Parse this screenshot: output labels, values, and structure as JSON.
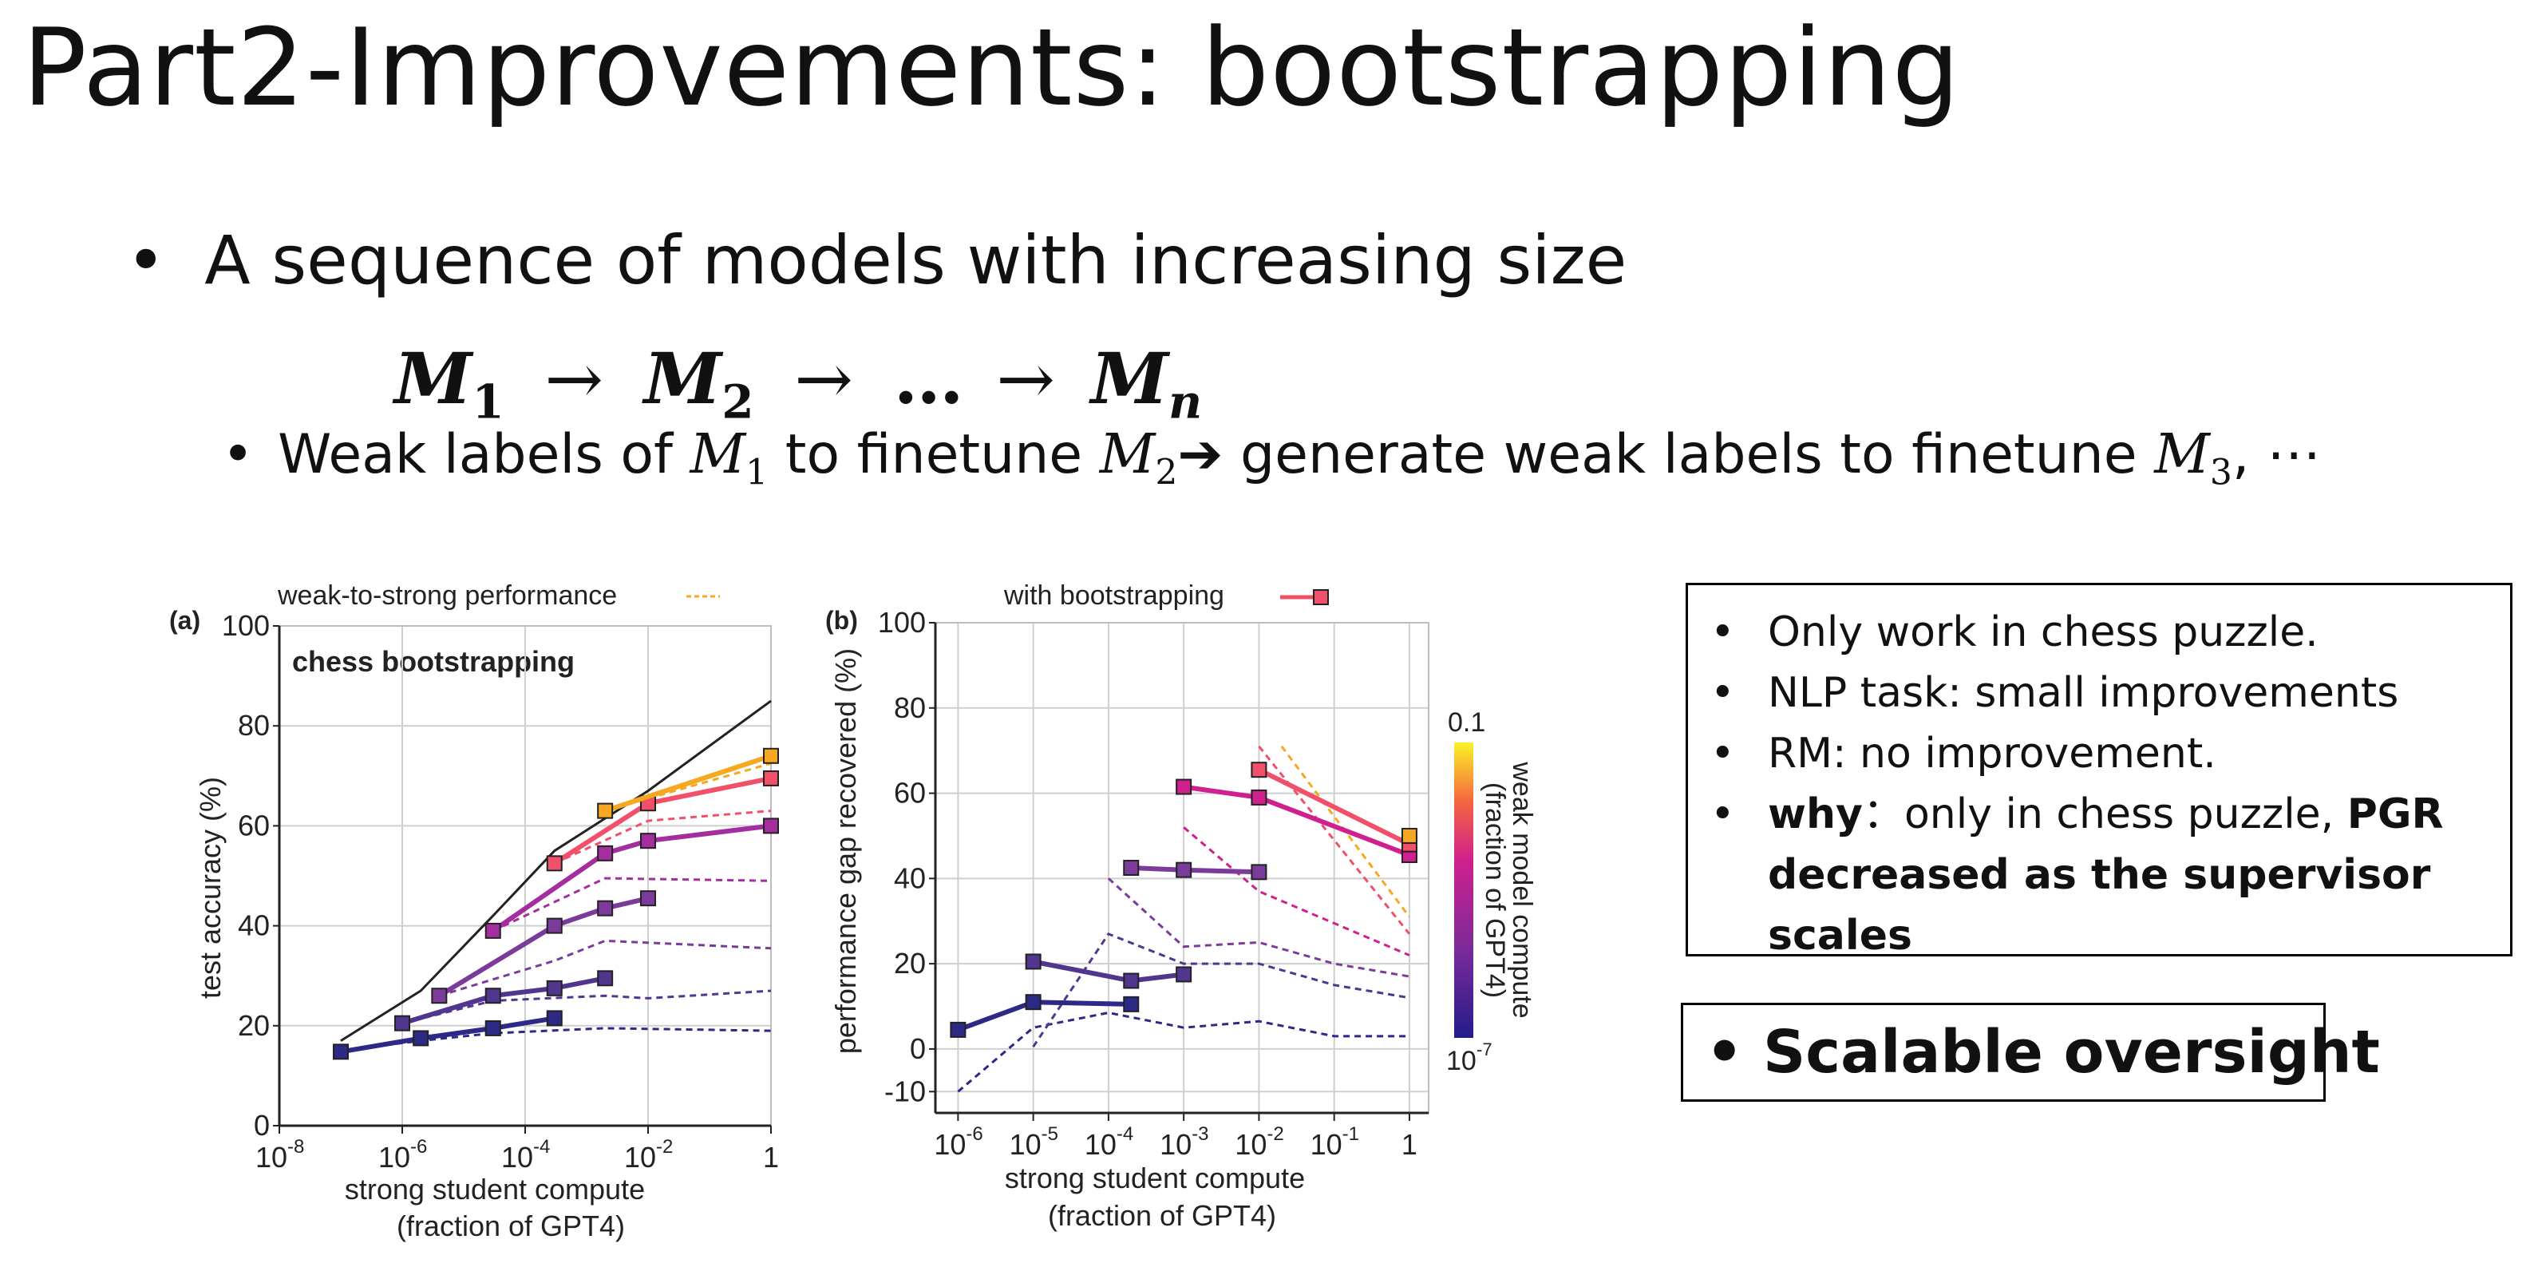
{
  "title": "Part2-Improvements: bootstrapping",
  "bullet_main": "A sequence of models with increasing size",
  "sequence": {
    "m1": "M",
    "s1": "1",
    "arrow1": "→",
    "m2": "M",
    "s2": "2",
    "arrow2": "→",
    "dots": "…",
    "arrow3": "→",
    "mn": "M",
    "sn": "n"
  },
  "sub_bullet": {
    "t1": "Weak labels of ",
    "m1": "M",
    "s1": "1",
    "t2": " to finetune ",
    "m2": "M",
    "s2": "2",
    "arrow": "➔",
    "t3": " generate weak labels to finetune ",
    "m3": "M",
    "s3": "3",
    "t4": ", ⋯"
  },
  "notes": {
    "b1": "Only work in chess puzzle.",
    "b2": "NLP task: small improvements",
    "b3": "RM: no improvement.",
    "b4_bold1": "why",
    "b4_text": "：only in chess puzzle, ",
    "b4_bold2": "PGR decreased as the supervisor scales"
  },
  "oversight": "Scalable oversight",
  "colors": {
    "c0": "#2c2a86",
    "c1": "#51358f",
    "c2": "#7b3b9a",
    "c3": "#a42e9e",
    "c4": "#d0208d",
    "c5": "#f0506a",
    "c6": "#ff7a4a",
    "c7": "#f6a821",
    "colorbar_top": "#fbf326",
    "colorbar_bottom": "#241b8a"
  },
  "chart_data": [
    {
      "type": "line",
      "panel": "(a)",
      "title": "chess bootstrapping",
      "legend_text": "weak-to-strong performance",
      "xlabel": "strong student compute",
      "xlabel2": "(fraction of GPT4)",
      "ylabel": "test accuracy (%)",
      "x_scale": "log",
      "xlim": [
        1e-08,
        1
      ],
      "ylim": [
        0,
        100
      ],
      "xticks": [
        {
          "exp": "-8",
          "label": "10"
        },
        {
          "exp": "-6",
          "label": "10"
        },
        {
          "exp": "-4",
          "label": "10"
        },
        {
          "exp": "-2",
          "label": "10"
        },
        {
          "exp": "",
          "label": "1"
        }
      ],
      "yticks": [
        "0",
        "20",
        "40",
        "60",
        "80",
        "100"
      ],
      "grid": true,
      "strong_ceiling": [
        [
          1e-07,
          17
        ],
        [
          2e-06,
          27
        ],
        [
          3e-05,
          42
        ],
        [
          0.0003,
          55
        ],
        [
          0.01,
          67
        ],
        [
          1,
          85
        ]
      ],
      "bootstrapped_series": [
        {
          "color_key": "c0",
          "points": [
            [
              1e-07,
              14.8
            ],
            [
              2e-06,
              17.5
            ],
            [
              3e-05,
              19.5
            ],
            [
              0.0003,
              21.5
            ]
          ],
          "dashed": [
            [
              1e-07,
              15
            ],
            [
              2e-06,
              17
            ],
            [
              3e-05,
              18.5
            ],
            [
              0.002,
              19.5
            ],
            [
              1,
              19
            ]
          ]
        },
        {
          "color_key": "c1",
          "points": [
            [
              1e-06,
              20.5
            ],
            [
              3e-05,
              26
            ],
            [
              0.0003,
              27.5
            ],
            [
              0.002,
              29.5
            ]
          ],
          "dashed": [
            [
              1e-06,
              20.5
            ],
            [
              3e-05,
              25
            ],
            [
              0.002,
              26
            ],
            [
              0.01,
              25.5
            ],
            [
              1,
              27
            ]
          ]
        },
        {
          "color_key": "c2",
          "points": [
            [
              4e-06,
              26
            ],
            [
              0.0003,
              40
            ],
            [
              0.002,
              43.5
            ],
            [
              0.01,
              45.5
            ]
          ],
          "dashed": [
            [
              4e-06,
              26
            ],
            [
              0.0003,
              33
            ],
            [
              0.002,
              37
            ],
            [
              1,
              35.5
            ]
          ]
        },
        {
          "color_key": "c3",
          "points": [
            [
              3e-05,
              39
            ],
            [
              0.002,
              54.5
            ],
            [
              0.01,
              57
            ],
            [
              1,
              60
            ]
          ],
          "dashed": [
            [
              3e-05,
              39
            ],
            [
              0.002,
              49.5
            ],
            [
              1,
              49
            ]
          ]
        },
        {
          "color_key": "c5",
          "points": [
            [
              0.0003,
              52.5
            ],
            [
              0.01,
              64.5
            ],
            [
              1,
              69.5
            ]
          ],
          "dashed": [
            [
              0.0003,
              52.5
            ],
            [
              0.01,
              61
            ],
            [
              1,
              63
            ]
          ]
        },
        {
          "color_key": "c7",
          "points": [
            [
              0.002,
              63
            ],
            [
              1,
              74
            ]
          ],
          "dashed": [
            [
              0.002,
              63
            ],
            [
              1,
              72.5
            ]
          ]
        }
      ]
    },
    {
      "type": "line",
      "panel": "(b)",
      "legend_text": "with bootstrapping",
      "xlabel": "strong student compute",
      "xlabel2": "(fraction of GPT4)",
      "ylabel": "performance gap recovered (%)",
      "x_scale": "log",
      "xlim": [
        5e-07,
        1.8
      ],
      "ylim": [
        -15,
        100
      ],
      "xticks": [
        {
          "exp": "-6",
          "label": "10",
          "v": 1e-06
        },
        {
          "exp": "-5",
          "label": "10",
          "v": 1e-05
        },
        {
          "exp": "-4",
          "label": "10",
          "v": 0.0001
        },
        {
          "exp": "-3",
          "label": "10",
          "v": 0.001
        },
        {
          "exp": "-2",
          "label": "10",
          "v": 0.01
        },
        {
          "exp": "-1",
          "label": "10",
          "v": 0.1
        },
        {
          "exp": "",
          "label": "1",
          "v": 1
        }
      ],
      "yticks": [
        "-10",
        "0",
        "20",
        "40",
        "60",
        "80",
        "100"
      ],
      "grid": true,
      "colorbar": {
        "title": "weak model compute",
        "subtitle": "(fraction of GPT4)",
        "top_label": "0.1",
        "bottom_exp": "-7",
        "bottom_label": "10"
      },
      "bootstrapped_series": [
        {
          "color_key": "c0",
          "points": [
            [
              1e-06,
              4.5
            ],
            [
              1e-05,
              11
            ],
            [
              0.0002,
              10.5
            ]
          ],
          "dashed": [
            [
              1e-06,
              -10
            ],
            [
              1e-05,
              5
            ],
            [
              0.0001,
              8.5
            ],
            [
              0.001,
              5
            ],
            [
              0.01,
              6.5
            ],
            [
              0.1,
              3
            ],
            [
              1,
              3
            ]
          ]
        },
        {
          "color_key": "c1",
          "points": [
            [
              1e-05,
              20.5
            ],
            [
              0.0002,
              16
            ],
            [
              0.001,
              17.5
            ]
          ],
          "dashed": [
            [
              1e-05,
              0.5
            ],
            [
              0.0001,
              27
            ],
            [
              0.001,
              20
            ],
            [
              0.01,
              20
            ],
            [
              0.1,
              15
            ],
            [
              1,
              12
            ]
          ]
        },
        {
          "color_key": "c2",
          "points": [
            [
              0.0002,
              42.5
            ],
            [
              0.001,
              42
            ],
            [
              0.01,
              41.5
            ]
          ],
          "dashed": [
            [
              0.0001,
              40
            ],
            [
              0.001,
              24
            ],
            [
              0.01,
              25
            ],
            [
              0.1,
              20
            ],
            [
              1,
              17
            ]
          ]
        },
        {
          "color_key": "c4",
          "points": [
            [
              0.001,
              61.5
            ],
            [
              0.01,
              59
            ],
            [
              1,
              45.5
            ]
          ],
          "dashed": [
            [
              0.001,
              52
            ],
            [
              0.01,
              37
            ],
            [
              1,
              22
            ]
          ]
        },
        {
          "color_key": "c5",
          "points": [
            [
              0.01,
              65.5
            ],
            [
              1,
              48
            ]
          ],
          "dashed": [
            [
              0.01,
              71
            ],
            [
              1,
              27
            ]
          ]
        },
        {
          "color_key": "c7",
          "points": [
            [
              1,
              50
            ]
          ],
          "dashed": [
            [
              0.02,
              71
            ],
            [
              1,
              31
            ]
          ]
        }
      ]
    }
  ]
}
